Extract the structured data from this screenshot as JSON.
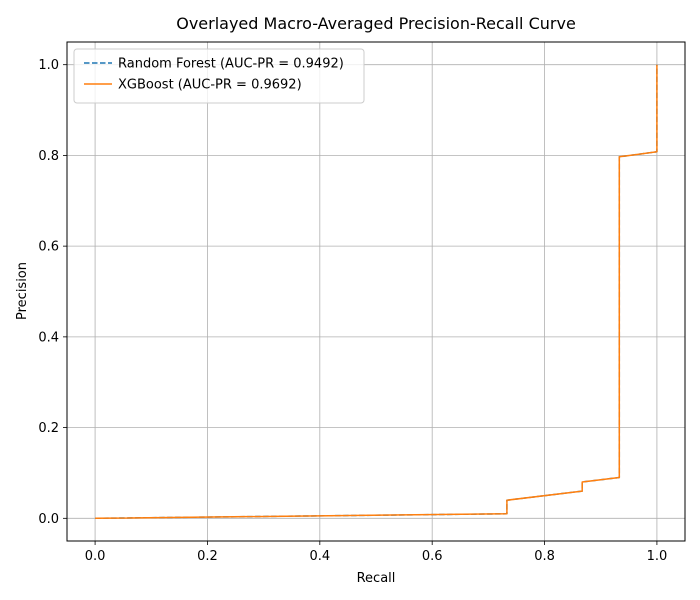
{
  "chart_data": {
    "type": "line",
    "title": "Overlayed Macro-Averaged Precision-Recall Curve",
    "xlabel": "Recall",
    "ylabel": "Precision",
    "xlim": [
      -0.05,
      1.05
    ],
    "ylim": [
      -0.05,
      1.05
    ],
    "xticks": [
      "0.0",
      "0.2",
      "0.4",
      "0.6",
      "0.8",
      "1.0"
    ],
    "yticks": [
      "0.0",
      "0.2",
      "0.4",
      "0.6",
      "0.8",
      "1.0"
    ],
    "grid": true,
    "legend_position": "top-left",
    "series": [
      {
        "name": "Random Forest (AUC-PR = 0.9492)",
        "color": "#1f77b4",
        "linestyle": "dashed",
        "x": [
          0.0,
          0.733,
          0.733,
          0.867,
          0.867,
          0.933,
          0.933,
          1.0,
          1.0
        ],
        "y": [
          0.0,
          0.01,
          0.04,
          0.06,
          0.08,
          0.09,
          0.797,
          0.808,
          1.0
        ]
      },
      {
        "name": "XGBoost (AUC-PR = 0.9692)",
        "color": "#ff7f0e",
        "linestyle": "solid",
        "x": [
          0.0,
          0.733,
          0.733,
          0.867,
          0.867,
          0.933,
          0.933,
          1.0,
          1.0
        ],
        "y": [
          0.0,
          0.01,
          0.04,
          0.06,
          0.08,
          0.09,
          0.797,
          0.808,
          1.0
        ]
      }
    ]
  }
}
